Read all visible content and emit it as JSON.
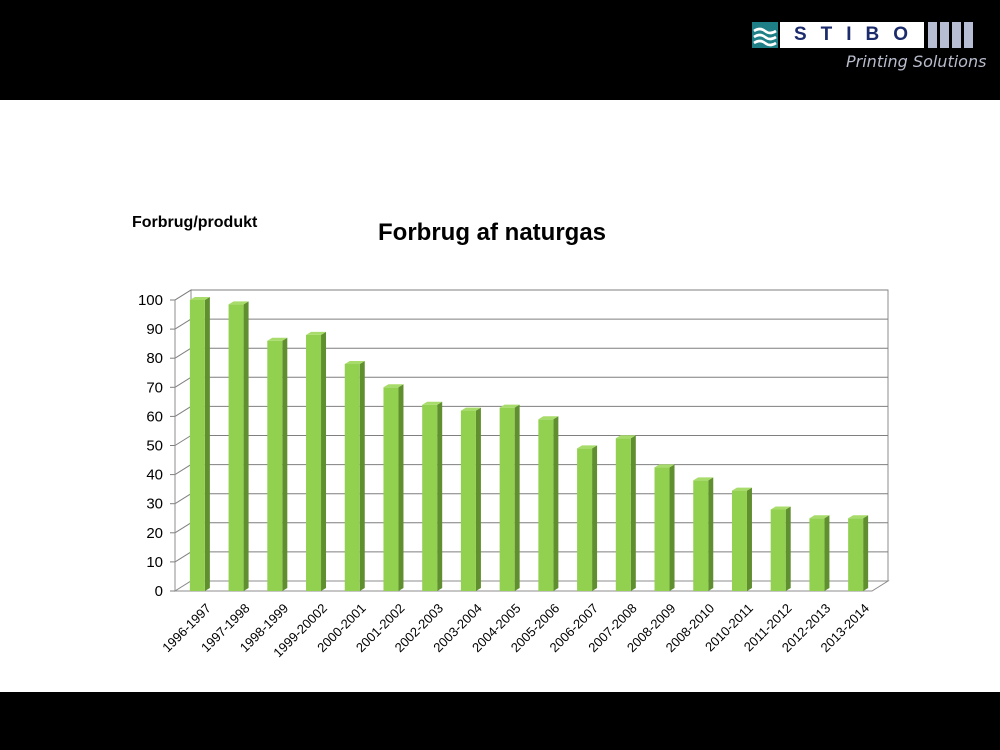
{
  "header": {
    "logo_word": "STIBO",
    "logo_subtitle": "Printing Solutions"
  },
  "chart_data": {
    "type": "bar",
    "title": "Forbrug af naturgas",
    "ylabel": "Forbrug/produkt",
    "xlabel": "",
    "ylim": [
      0,
      100
    ],
    "yticks": [
      0,
      10,
      20,
      30,
      40,
      50,
      60,
      70,
      80,
      90,
      100
    ],
    "grid": true,
    "legend": "none",
    "bar_color": "#92d050",
    "categories": [
      "1996-1997",
      "1997-1998",
      "1998-1999",
      "1999-20002",
      "2000-2001",
      "2001-2002",
      "2002-2003",
      "2003-2004",
      "2004-2005",
      "2005-2006",
      "2006-2007",
      "2007-2008",
      "2008-2009",
      "2008-2010",
      "2010-2011",
      "2011-2012",
      "2012-2013",
      "2013-2014"
    ],
    "values": [
      100,
      98.5,
      86,
      88,
      78,
      70,
      64,
      62,
      63,
      59,
      49,
      52.5,
      42.5,
      38,
      34.5,
      28,
      25,
      25
    ]
  }
}
